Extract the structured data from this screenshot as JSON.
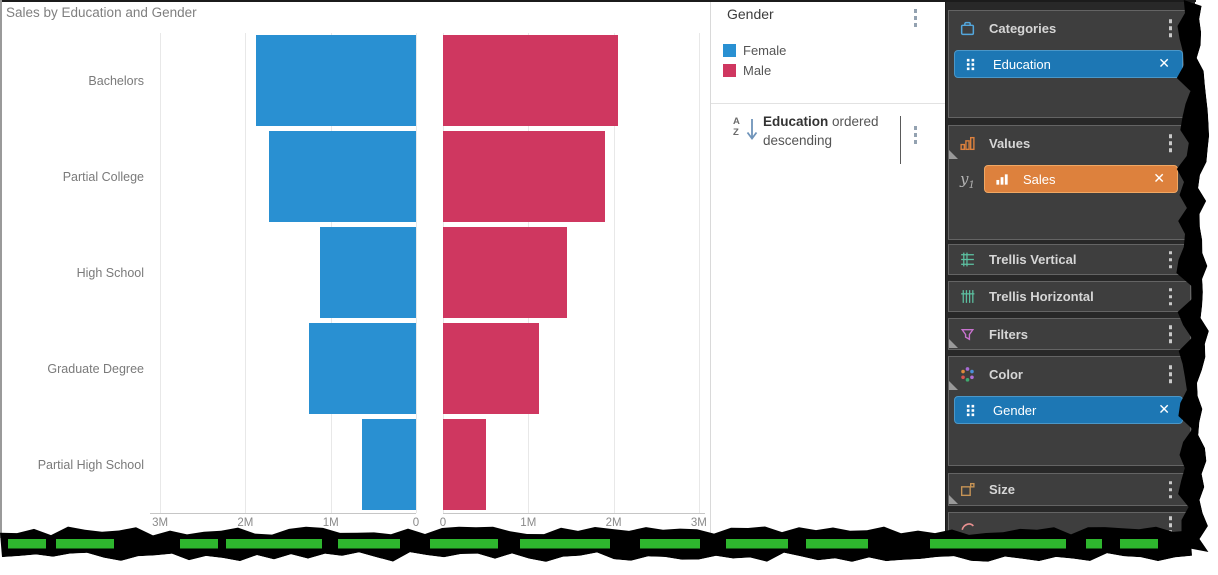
{
  "chart_data": {
    "type": "bar",
    "layout": "butterfly",
    "orientation": "horizontal",
    "title": "Sales by Education and Gender",
    "categories": [
      "Bachelors",
      "Partial College",
      "High School",
      "Graduate Degree",
      "Partial High School"
    ],
    "series": [
      {
        "name": "Female",
        "side": "left",
        "color": "#2990d2",
        "values_millions": [
          1.88,
          1.72,
          1.12,
          1.25,
          0.63
        ]
      },
      {
        "name": "Male",
        "side": "right",
        "color": "#cf3760",
        "values_millions": [
          2.05,
          1.9,
          1.45,
          1.13,
          0.5
        ]
      }
    ],
    "value_unit": "M",
    "axis": {
      "left_ticks": [
        "3M",
        "2M",
        "1M",
        "0"
      ],
      "right_ticks": [
        "0",
        "1M",
        "2M",
        "3M"
      ],
      "max": 3,
      "grid": true
    }
  },
  "legend": {
    "title": "Gender",
    "items": [
      {
        "label": "Female",
        "color": "#2990d2"
      },
      {
        "label": "Male",
        "color": "#cf3760"
      }
    ],
    "sort": {
      "field": "Education",
      "suffix": "ordered",
      "line2": "descending"
    }
  },
  "panel": {
    "sections": [
      {
        "id": "categories",
        "label": "Categories",
        "icon": "categories-icon",
        "chips": [
          {
            "label": "Education",
            "bg": "#1d77b4",
            "border": "#4b97c8",
            "icon": "grip-icon"
          }
        ]
      },
      {
        "id": "values",
        "label": "Values",
        "icon": "values-icon",
        "axis_label": "y1",
        "chips": [
          {
            "label": "Sales",
            "bg": "#dd813d",
            "border": "#f0a763",
            "icon": "bar-chart-icon"
          }
        ]
      },
      {
        "id": "trellis-vertical",
        "label": "Trellis Vertical",
        "icon": "trellis-vertical-icon",
        "chips": []
      },
      {
        "id": "trellis-horizontal",
        "label": "Trellis Horizontal",
        "icon": "trellis-horizontal-icon",
        "chips": []
      },
      {
        "id": "filters",
        "label": "Filters",
        "icon": "filters-icon",
        "chips": []
      },
      {
        "id": "color",
        "label": "Color",
        "icon": "color-icon",
        "chips": [
          {
            "label": "Gender",
            "bg": "#1d77b4",
            "border": "#4b97c8",
            "icon": "grip-icon"
          }
        ]
      },
      {
        "id": "size",
        "label": "Size",
        "icon": "size-icon",
        "chips": []
      },
      {
        "id": "shape",
        "label": "",
        "icon": "shape-icon",
        "chips": []
      }
    ]
  },
  "colors": {
    "female_bar": "#2990d2",
    "male_bar": "#cf3760",
    "chip_blue": "#1d77b4",
    "chip_orange": "#dd813d",
    "panel_background": "#282828",
    "torn_green_strip": "#2eb62e"
  }
}
